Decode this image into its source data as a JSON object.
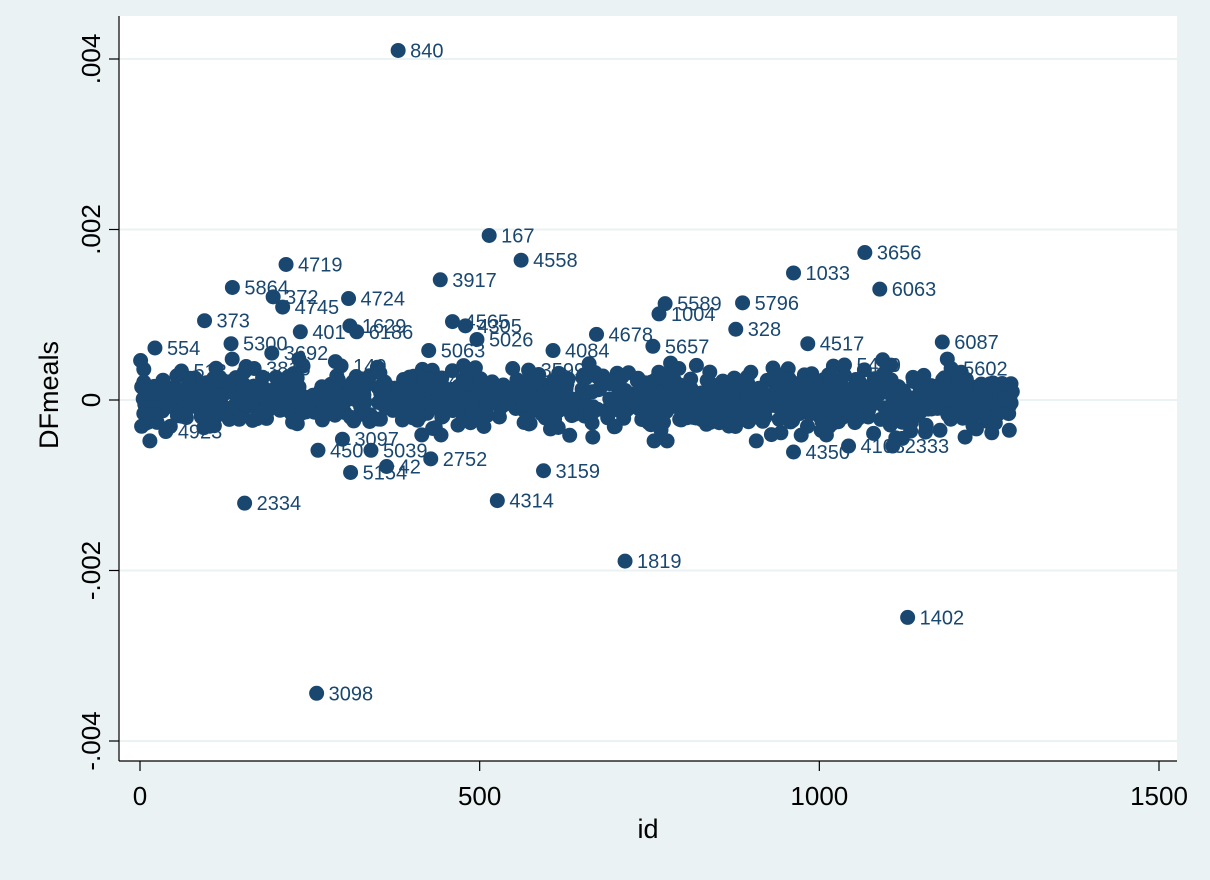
{
  "chart_data": {
    "type": "scatter",
    "title": "",
    "xlabel": "id",
    "ylabel": "DFmeals",
    "xlim": [
      -20,
      1530
    ],
    "ylim": [
      -0.0041,
      0.0042
    ],
    "xticks": [
      0,
      500,
      1000,
      1500
    ],
    "xtick_labels": [
      "0",
      "500",
      "1000",
      "1500"
    ],
    "yticks": [
      -0.004,
      -0.002,
      0,
      0.002,
      0.004
    ],
    "ytick_labels": [
      "-.004",
      "-.002",
      "0",
      ".002",
      ".004"
    ],
    "grid": true,
    "legend": "none",
    "colors": {
      "background": "#eaf2f3",
      "plot_area": "#ffffff",
      "grid": "#eaf2f3",
      "marker": "#1a476f",
      "label": "#1a476f"
    },
    "points": [
      {
        "x": 380,
        "y": 0.0041,
        "label": "840"
      },
      {
        "x": 514,
        "y": 0.00193,
        "label": "167"
      },
      {
        "x": 1067,
        "y": 0.00173,
        "label": "3656"
      },
      {
        "x": 561,
        "y": 0.00164,
        "label": "4558"
      },
      {
        "x": 215,
        "y": 0.00159,
        "label": "4719"
      },
      {
        "x": 962,
        "y": 0.00149,
        "label": "1033"
      },
      {
        "x": 442,
        "y": 0.00141,
        "label": "3917"
      },
      {
        "x": 136,
        "y": 0.00132,
        "label": "5864"
      },
      {
        "x": 1089,
        "y": 0.0013,
        "label": "6063"
      },
      {
        "x": 196,
        "y": 0.00121,
        "label": "372"
      },
      {
        "x": 307,
        "y": 0.00119,
        "label": "4724"
      },
      {
        "x": 773,
        "y": 0.00113,
        "label": "5589"
      },
      {
        "x": 887,
        "y": 0.00114,
        "label": "5796"
      },
      {
        "x": 210,
        "y": 0.00109,
        "label": "4745"
      },
      {
        "x": 764,
        "y": 0.00101,
        "label": "1004"
      },
      {
        "x": 95,
        "y": 0.00093,
        "label": "373"
      },
      {
        "x": 460,
        "y": 0.00092,
        "label": "4565"
      },
      {
        "x": 479,
        "y": 0.00087,
        "label": "4305"
      },
      {
        "x": 309,
        "y": 0.00087,
        "label": "1629"
      },
      {
        "x": 877,
        "y": 0.00083,
        "label": "328"
      },
      {
        "x": 319,
        "y": 0.0008,
        "label": "6186"
      },
      {
        "x": 236,
        "y": 0.0008,
        "label": "401"
      },
      {
        "x": 672,
        "y": 0.00077,
        "label": "4678"
      },
      {
        "x": 496,
        "y": 0.00071,
        "label": "5026"
      },
      {
        "x": 1181,
        "y": 0.00068,
        "label": "6087"
      },
      {
        "x": 134,
        "y": 0.00066,
        "label": "5300"
      },
      {
        "x": 983,
        "y": 0.00066,
        "label": "4517"
      },
      {
        "x": 755,
        "y": 0.00063,
        "label": "5657"
      },
      {
        "x": 22,
        "y": 0.00061,
        "label": "554"
      },
      {
        "x": 425,
        "y": 0.00058,
        "label": "5063"
      },
      {
        "x": 608,
        "y": 0.00058,
        "label": "4084"
      },
      {
        "x": 194,
        "y": 0.00055,
        "label": "3692"
      },
      {
        "x": 1194,
        "y": 0.00037,
        "label": "5602"
      },
      {
        "x": 1037,
        "y": 0.00041,
        "label": "5409"
      },
      {
        "x": 296,
        "y": 0.0004,
        "label": "140"
      },
      {
        "x": 168,
        "y": 0.00037,
        "label": "3815"
      },
      {
        "x": 61,
        "y": 0.00034,
        "label": "513"
      },
      {
        "x": 572,
        "y": 0.00035,
        "label": "3599"
      },
      {
        "x": 388,
        "y": 0.00024,
        "label": "1904"
      },
      {
        "x": 38,
        "y": -0.00037,
        "label": "4923"
      },
      {
        "x": 298,
        "y": -0.00046,
        "label": "3097"
      },
      {
        "x": 262,
        "y": -0.00059,
        "label": "450"
      },
      {
        "x": 340,
        "y": -0.00059,
        "label": "5039"
      },
      {
        "x": 363,
        "y": -0.00078,
        "label": "42"
      },
      {
        "x": 310,
        "y": -0.00085,
        "label": "5154"
      },
      {
        "x": 428,
        "y": -0.00069,
        "label": "2752"
      },
      {
        "x": 594,
        "y": -0.00083,
        "label": "3159"
      },
      {
        "x": 1108,
        "y": -0.00054,
        "label": "2333"
      },
      {
        "x": 1043,
        "y": -0.00054,
        "label": "4103"
      },
      {
        "x": 962,
        "y": -0.00061,
        "label": "4350"
      },
      {
        "x": 154,
        "y": -0.00121,
        "label": "2334"
      },
      {
        "x": 526,
        "y": -0.00118,
        "label": "4314"
      },
      {
        "x": 714,
        "y": -0.00189,
        "label": "1819"
      },
      {
        "x": 1130,
        "y": -0.00255,
        "label": "1402"
      },
      {
        "x": 260,
        "y": -0.00344,
        "label": "3098"
      }
    ],
    "cluster": {
      "x_min": 0,
      "x_max": 1285,
      "y_sd": 0.00017,
      "count": 1100
    }
  }
}
